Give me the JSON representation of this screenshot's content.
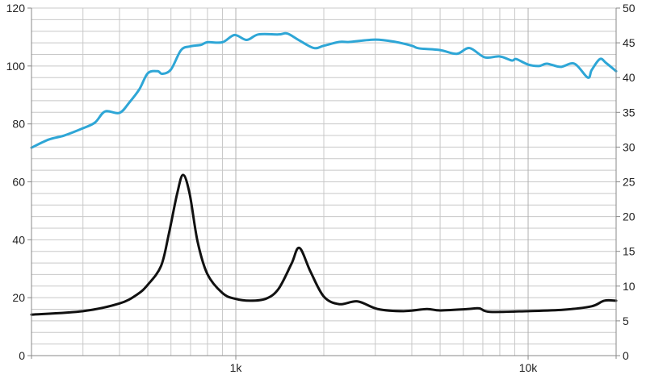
{
  "chart_data": {
    "type": "line",
    "title": "",
    "xlabel": "",
    "ylabel": "",
    "y2label": "",
    "x_scale": "log",
    "xlim": [
      200,
      20000
    ],
    "ylim": [
      0,
      120
    ],
    "y2lim": [
      0,
      50
    ],
    "grid": true,
    "x_tick_labels": [
      {
        "value": 1000,
        "label": "1k"
      },
      {
        "value": 10000,
        "label": "10k"
      }
    ],
    "y_ticks": [
      "0",
      "20",
      "40",
      "60",
      "80",
      "100",
      "120"
    ],
    "y2_ticks": [
      "0",
      "5",
      "10",
      "15",
      "20",
      "25",
      "30",
      "35",
      "40",
      "45",
      "50"
    ],
    "series": [
      {
        "axis": "left",
        "color": "#2ea6d6",
        "x": [
          200,
          229,
          259,
          300,
          330,
          357,
          400,
          433,
          468,
          500,
          540,
          560,
          600,
          650,
          700,
          760,
          800,
          900,
          990,
          1090,
          1195,
          1400,
          1500,
          1650,
          1850,
          2000,
          2260,
          2450,
          3000,
          3520,
          4000,
          4230,
          5000,
          5700,
          6300,
          7100,
          8000,
          8800,
          9100,
          10000,
          10900,
          11600,
          12900,
          14400,
          16000,
          16500,
          17600,
          18500,
          20000
        ],
        "y": [
          71.8,
          74.6,
          76,
          78.5,
          80.5,
          84.3,
          83.8,
          87.5,
          92,
          97.5,
          98.2,
          97.3,
          98.8,
          105.5,
          106.8,
          107.3,
          108.2,
          108.2,
          110.7,
          109,
          110.9,
          110.9,
          111.2,
          108.8,
          106.2,
          107,
          108.3,
          108.3,
          109.1,
          108.3,
          107,
          106.1,
          105.5,
          104.2,
          106.2,
          103,
          103.3,
          101.9,
          102.4,
          100.5,
          100,
          100.8,
          99.7,
          100.8,
          96,
          98.6,
          102.4,
          101,
          98.2
        ]
      },
      {
        "axis": "right",
        "color": "#111111",
        "x": [
          200,
          300,
          400,
          460,
          500,
          555,
          590,
          630,
          660,
          695,
          740,
          800,
          900,
          990,
          1120,
          1270,
          1400,
          1550,
          1650,
          1800,
          2000,
          2260,
          2610,
          3060,
          3750,
          4500,
          5000,
          6200,
          6800,
          7400,
          10000,
          13200,
          16500,
          18200,
          20000
        ],
        "y": [
          5.9,
          6.4,
          7.5,
          8.8,
          10.2,
          12.9,
          17.5,
          23.3,
          26,
          23.3,
          16.4,
          11.7,
          9,
          8.2,
          7.9,
          8.2,
          9.6,
          13.2,
          15.5,
          12.1,
          8.5,
          7.4,
          7.8,
          6.7,
          6.4,
          6.7,
          6.5,
          6.7,
          6.8,
          6.3,
          6.4,
          6.6,
          7.1,
          7.9,
          7.9
        ]
      }
    ]
  }
}
